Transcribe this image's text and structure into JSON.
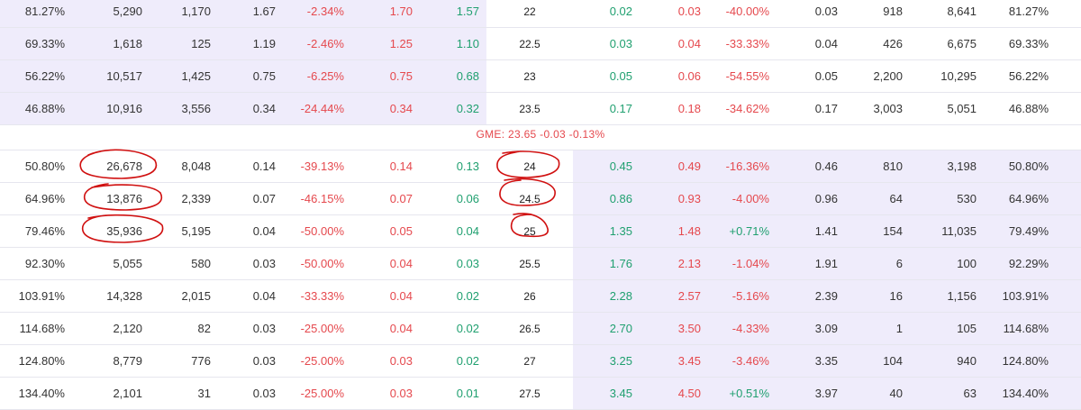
{
  "colors": {
    "shade": "#efecfb",
    "red": "#e5484d",
    "green": "#20a070",
    "annotation": "#d01010"
  },
  "ticker": "GME: 23.65 -0.03 -0.13%",
  "top_rows": [
    {
      "c": [
        "81.27%",
        "5,290",
        "1,170",
        "1.67",
        "-2.34%",
        "1.70",
        "1.57"
      ],
      "strike": "22",
      "p": [
        "0.02",
        "0.03",
        "-40.00%",
        "0.03",
        "918",
        "8,641",
        "81.27%"
      ]
    },
    {
      "c": [
        "69.33%",
        "1,618",
        "125",
        "1.19",
        "-2.46%",
        "1.25",
        "1.10"
      ],
      "strike": "22.5",
      "p": [
        "0.03",
        "0.04",
        "-33.33%",
        "0.04",
        "426",
        "6,675",
        "69.33%"
      ]
    },
    {
      "c": [
        "56.22%",
        "10,517",
        "1,425",
        "0.75",
        "-6.25%",
        "0.75",
        "0.68"
      ],
      "strike": "23",
      "p": [
        "0.05",
        "0.06",
        "-54.55%",
        "0.05",
        "2,200",
        "10,295",
        "56.22%"
      ]
    },
    {
      "c": [
        "46.88%",
        "10,916",
        "3,556",
        "0.34",
        "-24.44%",
        "0.34",
        "0.32"
      ],
      "strike": "23.5",
      "p": [
        "0.17",
        "0.18",
        "-34.62%",
        "0.17",
        "3,003",
        "5,051",
        "46.88%"
      ]
    }
  ],
  "bottom_rows": [
    {
      "c": [
        "50.80%",
        "26,678",
        "8,048",
        "0.14",
        "-39.13%",
        "0.14",
        "0.13"
      ],
      "strike": "24",
      "p": [
        "0.45",
        "0.49",
        "-16.36%",
        "0.46",
        "810",
        "3,198",
        "50.80%"
      ]
    },
    {
      "c": [
        "64.96%",
        "13,876",
        "2,339",
        "0.07",
        "-46.15%",
        "0.07",
        "0.06"
      ],
      "strike": "24.5",
      "p": [
        "0.86",
        "0.93",
        "-4.00%",
        "0.96",
        "64",
        "530",
        "64.96%"
      ]
    },
    {
      "c": [
        "79.46%",
        "35,936",
        "5,195",
        "0.04",
        "-50.00%",
        "0.05",
        "0.04"
      ],
      "strike": "25",
      "p": [
        "1.35",
        "1.48",
        "+0.71%",
        "1.41",
        "154",
        "11,035",
        "79.49%"
      ]
    },
    {
      "c": [
        "92.30%",
        "5,055",
        "580",
        "0.03",
        "-50.00%",
        "0.04",
        "0.03"
      ],
      "strike": "25.5",
      "p": [
        "1.76",
        "2.13",
        "-1.04%",
        "1.91",
        "6",
        "100",
        "92.29%"
      ]
    },
    {
      "c": [
        "103.91%",
        "14,328",
        "2,015",
        "0.04",
        "-33.33%",
        "0.04",
        "0.02"
      ],
      "strike": "26",
      "p": [
        "2.28",
        "2.57",
        "-5.16%",
        "2.39",
        "16",
        "1,156",
        "103.91%"
      ]
    },
    {
      "c": [
        "114.68%",
        "2,120",
        "82",
        "0.03",
        "-25.00%",
        "0.04",
        "0.02"
      ],
      "strike": "26.5",
      "p": [
        "2.70",
        "3.50",
        "-4.33%",
        "3.09",
        "1",
        "105",
        "114.68%"
      ]
    },
    {
      "c": [
        "124.80%",
        "8,779",
        "776",
        "0.03",
        "-25.00%",
        "0.03",
        "0.02"
      ],
      "strike": "27",
      "p": [
        "3.25",
        "3.45",
        "-3.46%",
        "3.35",
        "104",
        "940",
        "124.80%"
      ]
    },
    {
      "c": [
        "134.40%",
        "2,101",
        "31",
        "0.03",
        "-25.00%",
        "0.03",
        "0.01"
      ],
      "strike": "27.5",
      "p": [
        "3.45",
        "4.50",
        "+0.51%",
        "3.97",
        "40",
        "63",
        "134.40%"
      ]
    }
  ]
}
